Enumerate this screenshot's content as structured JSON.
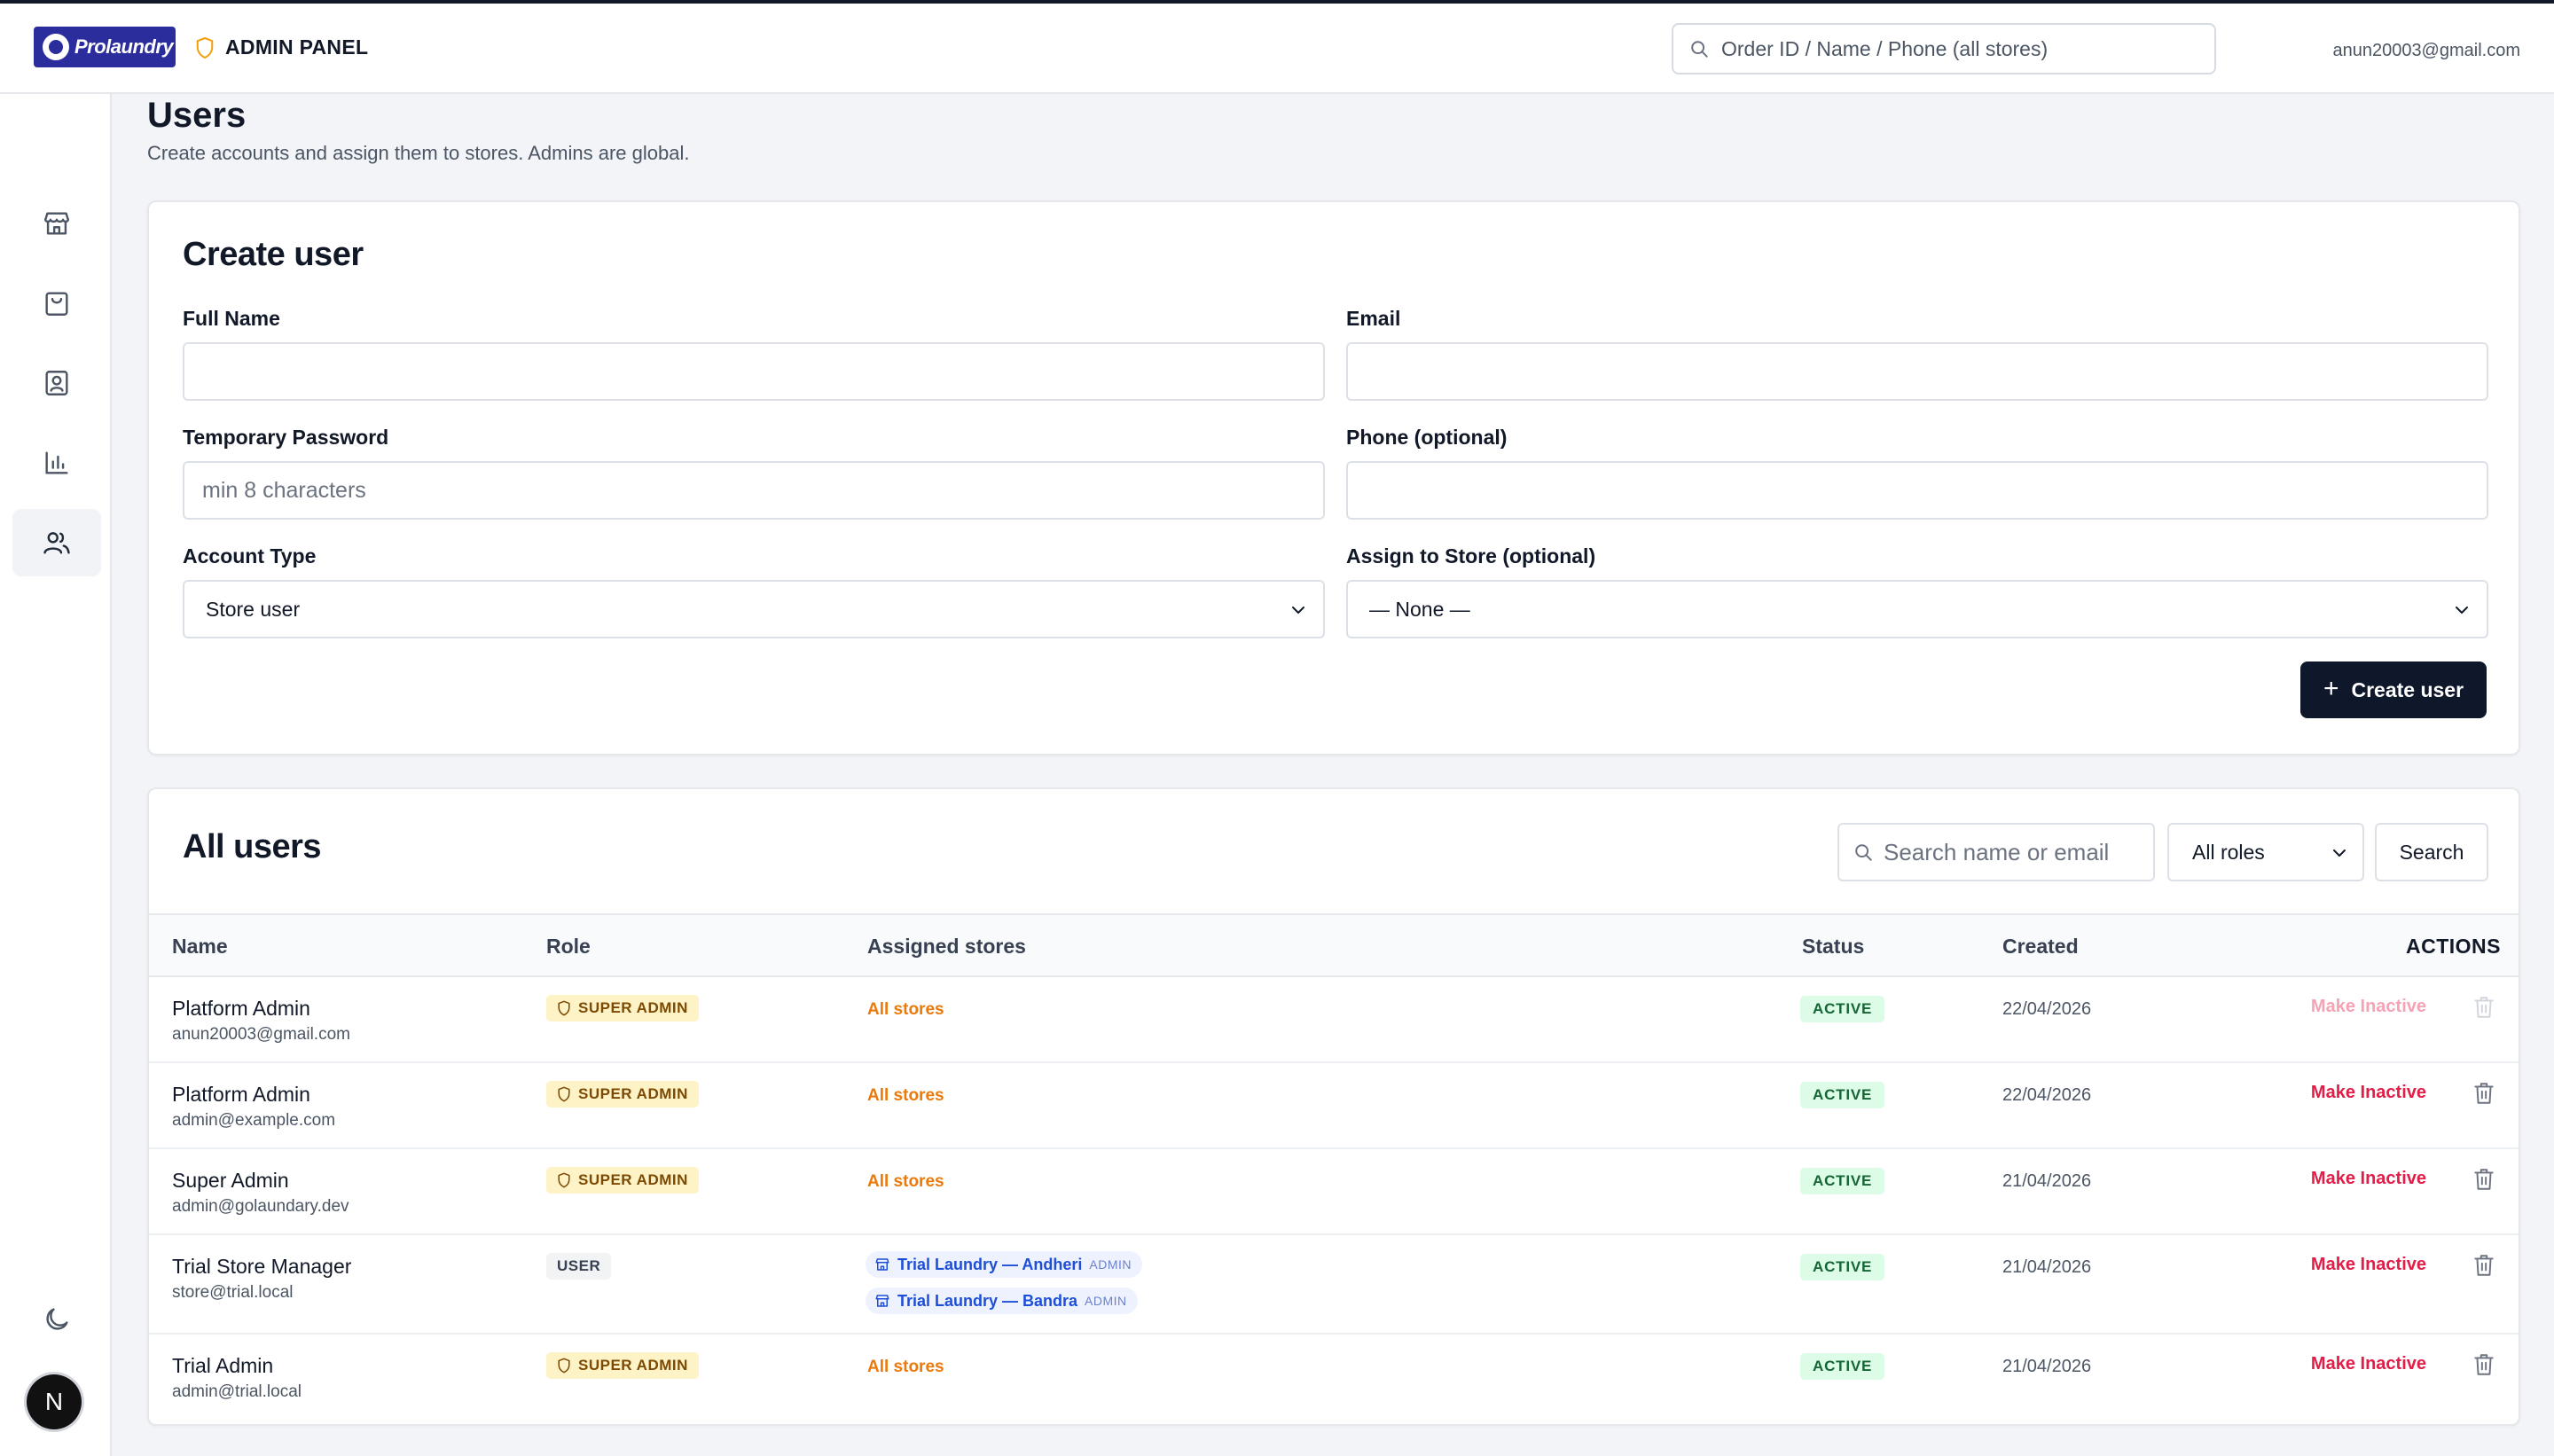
{
  "header": {
    "logo_text": "Prolaundry",
    "panel_label": "ADMIN PANEL",
    "search_placeholder": "Order ID / Name / Phone (all stores)",
    "user_email": "anun20003@gmail.com"
  },
  "sidebar": {
    "items": [
      {
        "name": "store-icon",
        "active": false
      },
      {
        "name": "shopping-bag-icon",
        "active": false
      },
      {
        "name": "customer-icon",
        "active": false
      },
      {
        "name": "chart-icon",
        "active": false
      },
      {
        "name": "users-icon",
        "active": true
      }
    ],
    "theme_icon": "moon-icon",
    "avatar_letter": "N"
  },
  "page": {
    "title": "Users",
    "subtitle": "Create accounts and assign them to stores. Admins are global."
  },
  "create_form": {
    "title": "Create user",
    "full_name_label": "Full Name",
    "email_label": "Email",
    "password_label": "Temporary Password",
    "password_placeholder": "min 8 characters",
    "phone_label": "Phone (optional)",
    "account_type_label": "Account Type",
    "account_type_value": "Store user",
    "store_label": "Assign to Store (optional)",
    "store_value": "— None —",
    "submit_label": "Create user"
  },
  "users_list": {
    "title": "All users",
    "search_placeholder": "Search name or email",
    "role_filter_value": "All roles",
    "search_button": "Search",
    "columns": {
      "name": "Name",
      "role": "Role",
      "stores": "Assigned stores",
      "status": "Status",
      "created": "Created",
      "actions": "ACTIONS"
    },
    "rows": [
      {
        "name": "Platform Admin",
        "email": "anun20003@gmail.com",
        "role": "SUPER ADMIN",
        "stores": "All stores",
        "status": "ACTIVE",
        "created": "22/04/2026",
        "action": "Make Inactive"
      },
      {
        "name": "Platform Admin",
        "email": "admin@example.com",
        "role": "SUPER ADMIN",
        "stores": "All stores",
        "status": "ACTIVE",
        "created": "22/04/2026",
        "action": "Make Inactive"
      },
      {
        "name": "Super Admin",
        "email": "admin@golaundary.dev",
        "role": "SUPER ADMIN",
        "stores": "All stores",
        "status": "ACTIVE",
        "created": "21/04/2026",
        "action": "Make Inactive"
      },
      {
        "name": "Trial Store Manager",
        "email": "store@trial.local",
        "role": "USER",
        "store_chips": [
          {
            "name": "Trial Laundry — Andheri",
            "role": "ADMIN"
          },
          {
            "name": "Trial Laundry — Bandra",
            "role": "ADMIN"
          }
        ],
        "status": "ACTIVE",
        "created": "21/04/2026",
        "action": "Make Inactive"
      },
      {
        "name": "Trial Admin",
        "email": "admin@trial.local",
        "role": "SUPER ADMIN",
        "stores": "All stores",
        "status": "ACTIVE",
        "created": "21/04/2026",
        "action": "Make Inactive"
      }
    ]
  },
  "colors": {
    "primary": "#0f172a",
    "brand": "#2b2d9c",
    "danger": "#e11d48",
    "orange": "#ea7a0c",
    "success_bg": "#dcfce7"
  }
}
